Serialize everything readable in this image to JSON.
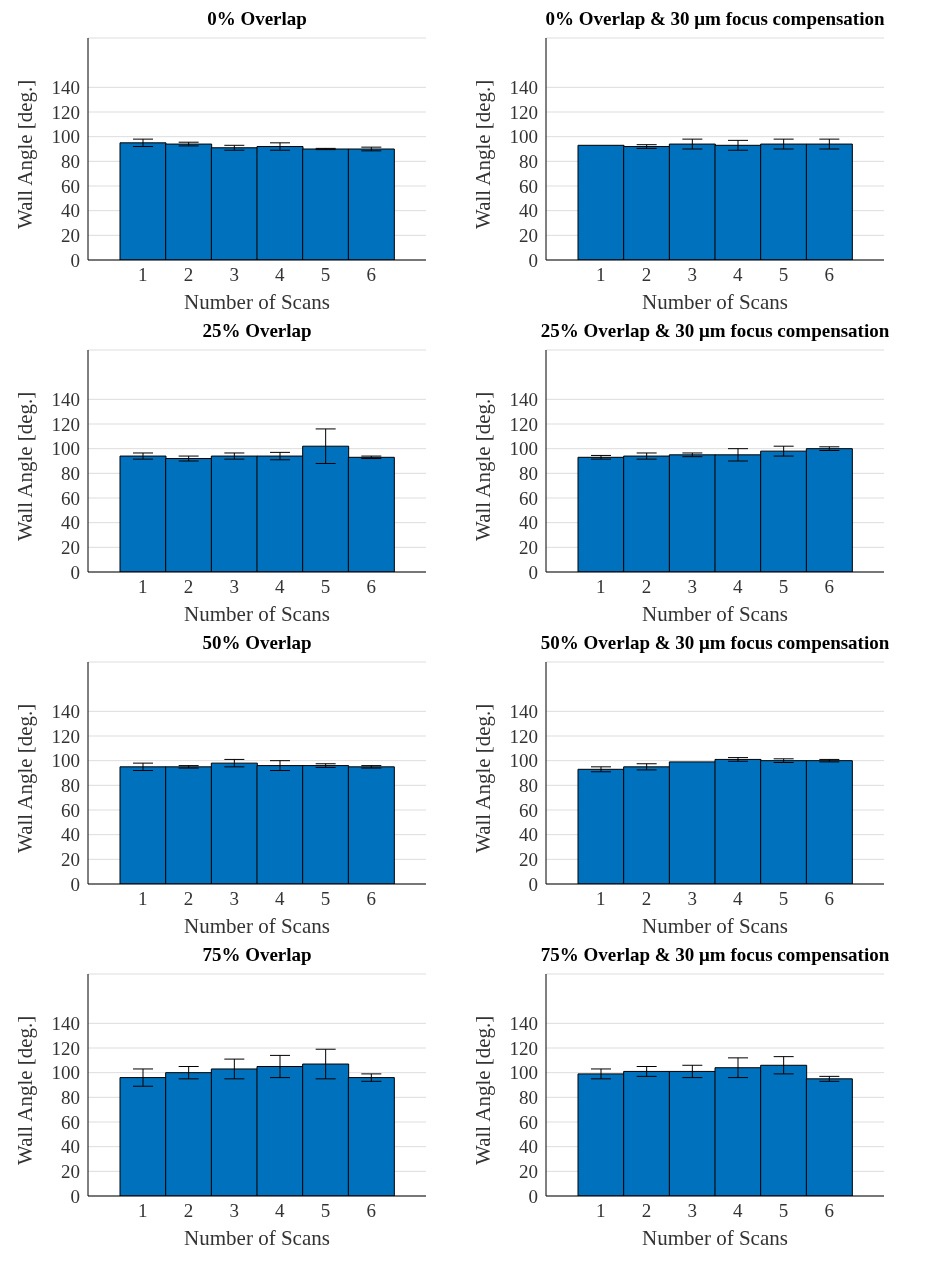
{
  "chart_data": [
    {
      "type": "bar",
      "title": "0% Overlap",
      "xlabel": "Number of Scans",
      "ylabel": "Wall Angle [deg.]",
      "categories": [
        "1",
        "2",
        "3",
        "4",
        "5",
        "6"
      ],
      "values": [
        95,
        94,
        91,
        92,
        90,
        90
      ],
      "errors": [
        3,
        1.5,
        2,
        3,
        0.5,
        1.5
      ],
      "color": "#0072bd",
      "ylim": [
        0,
        180
      ],
      "yticks": [
        0,
        20,
        40,
        60,
        80,
        100,
        120,
        140
      ],
      "grid": "y"
    },
    {
      "type": "bar",
      "title": "0% Overlap & 30 μm focus compensation",
      "xlabel": "Number of Scans",
      "ylabel": "Wall Angle [deg.]",
      "categories": [
        "1",
        "2",
        "3",
        "4",
        "5",
        "6"
      ],
      "values": [
        93,
        92,
        94,
        93,
        94,
        94
      ],
      "errors": [
        null,
        1.5,
        4,
        4,
        4,
        4
      ],
      "color": "#0072bd",
      "ylim": [
        0,
        180
      ],
      "yticks": [
        0,
        20,
        40,
        60,
        80,
        100,
        120,
        140
      ],
      "grid": "y"
    },
    {
      "type": "bar",
      "title": "25% Overlap",
      "xlabel": "Number of Scans",
      "ylabel": "Wall Angle [deg.]",
      "categories": [
        "1",
        "2",
        "3",
        "4",
        "5",
        "6"
      ],
      "values": [
        94,
        92,
        94,
        94,
        102,
        93
      ],
      "errors": [
        2.5,
        2,
        2.5,
        3,
        14,
        1
      ],
      "color": "#0072bd",
      "ylim": [
        0,
        180
      ],
      "yticks": [
        0,
        20,
        40,
        60,
        80,
        100,
        120,
        140
      ],
      "grid": "y"
    },
    {
      "type": "bar",
      "title": "25% Overlap & 30 μm focus compensation",
      "xlabel": "Number of Scans",
      "ylabel": "Wall Angle [deg.]",
      "categories": [
        "1",
        "2",
        "3",
        "4",
        "5",
        "6"
      ],
      "values": [
        93,
        94,
        95,
        95,
        98,
        100
      ],
      "errors": [
        1.5,
        2.5,
        1.5,
        5,
        4,
        1.5
      ],
      "color": "#0072bd",
      "ylim": [
        0,
        180
      ],
      "yticks": [
        0,
        20,
        40,
        60,
        80,
        100,
        120,
        140
      ],
      "grid": "y"
    },
    {
      "type": "bar",
      "title": "50% Overlap",
      "xlabel": "Number of Scans",
      "ylabel": "Wall Angle [deg.]",
      "categories": [
        "1",
        "2",
        "3",
        "4",
        "5",
        "6"
      ],
      "values": [
        95,
        95,
        98,
        96,
        96,
        95
      ],
      "errors": [
        3,
        1,
        3,
        4,
        1.5,
        1
      ],
      "color": "#0072bd",
      "ylim": [
        0,
        180
      ],
      "yticks": [
        0,
        20,
        40,
        60,
        80,
        100,
        120,
        140
      ],
      "grid": "y"
    },
    {
      "type": "bar",
      "title": "50% Overlap & 30 μm focus compensation",
      "xlabel": "Number of Scans",
      "ylabel": "Wall Angle [deg.]",
      "categories": [
        "1",
        "2",
        "3",
        "4",
        "5",
        "6"
      ],
      "values": [
        93,
        95,
        99,
        101,
        100,
        100
      ],
      "errors": [
        2,
        2.5,
        null,
        1.5,
        1.5,
        1
      ],
      "color": "#0072bd",
      "ylim": [
        0,
        180
      ],
      "yticks": [
        0,
        20,
        40,
        60,
        80,
        100,
        120,
        140
      ],
      "grid": "y"
    },
    {
      "type": "bar",
      "title": "75% Overlap",
      "xlabel": "Number of Scans",
      "ylabel": "Wall Angle [deg.]",
      "categories": [
        "1",
        "2",
        "3",
        "4",
        "5",
        "6"
      ],
      "values": [
        96,
        100,
        103,
        105,
        107,
        96
      ],
      "errors": [
        7,
        5,
        8,
        9,
        12,
        3
      ],
      "color": "#0072bd",
      "ylim": [
        0,
        180
      ],
      "yticks": [
        0,
        20,
        40,
        60,
        80,
        100,
        120,
        140
      ],
      "grid": "y"
    },
    {
      "type": "bar",
      "title": "75% Overlap & 30 μm focus compensation",
      "xlabel": "Number of Scans",
      "ylabel": "Wall Angle [deg.]",
      "categories": [
        "1",
        "2",
        "3",
        "4",
        "5",
        "6"
      ],
      "values": [
        99,
        101,
        101,
        104,
        106,
        95
      ],
      "errors": [
        4,
        4,
        5,
        8,
        7,
        2
      ],
      "color": "#0072bd",
      "ylim": [
        0,
        180
      ],
      "yticks": [
        0,
        20,
        40,
        60,
        80,
        100,
        120,
        140
      ],
      "grid": "y"
    }
  ]
}
